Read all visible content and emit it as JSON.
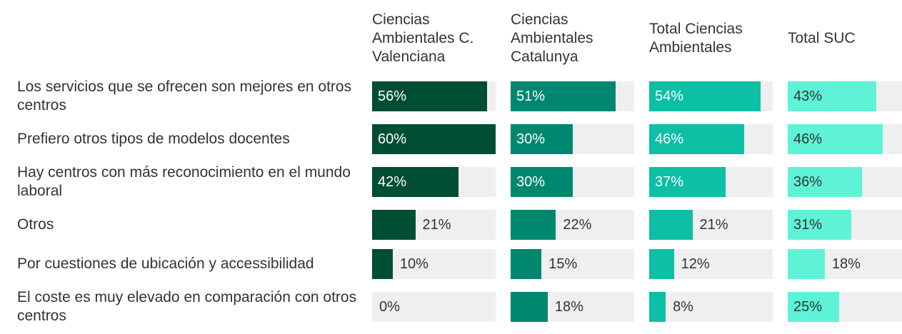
{
  "chart_data": {
    "type": "bar",
    "categories": [
      "Los servicios que se ofrecen son mejores en otros centros",
      "Prefiero otros tipos de modelos docentes",
      "Hay centros con más reconocimiento en el mundo laboral",
      "Otros",
      "Por cuestiones de ubicación y accessibilidad",
      "El coste es muy elevado en comparación con otros centros"
    ],
    "xlim": [
      0,
      60
    ],
    "series": [
      {
        "name": "Ciencias Ambientales C. Valenciana",
        "color": "#004d35",
        "values": [
          56,
          60,
          42,
          21,
          10,
          0
        ],
        "value_labels": [
          "56%",
          "60%",
          "42%",
          "21%",
          "10%",
          "0%"
        ]
      },
      {
        "name": "Ciencias Ambientales Catalunya",
        "color": "#00876f",
        "values": [
          51,
          30,
          30,
          22,
          15,
          18
        ],
        "value_labels": [
          "51%",
          "30%",
          "30%",
          "22%",
          "15%",
          "18%"
        ]
      },
      {
        "name": "Total Ciencias Ambientales",
        "color": "#0cbfa5",
        "values": [
          54,
          46,
          37,
          21,
          12,
          8
        ],
        "value_labels": [
          "54%",
          "46%",
          "37%",
          "21%",
          "12%",
          "8%"
        ]
      },
      {
        "name": "Total SUC",
        "color": "#5ef3d7",
        "values": [
          43,
          46,
          36,
          31,
          18,
          25
        ],
        "value_labels": [
          "43%",
          "46%",
          "36%",
          "31%",
          "18%",
          "25%"
        ]
      }
    ]
  }
}
